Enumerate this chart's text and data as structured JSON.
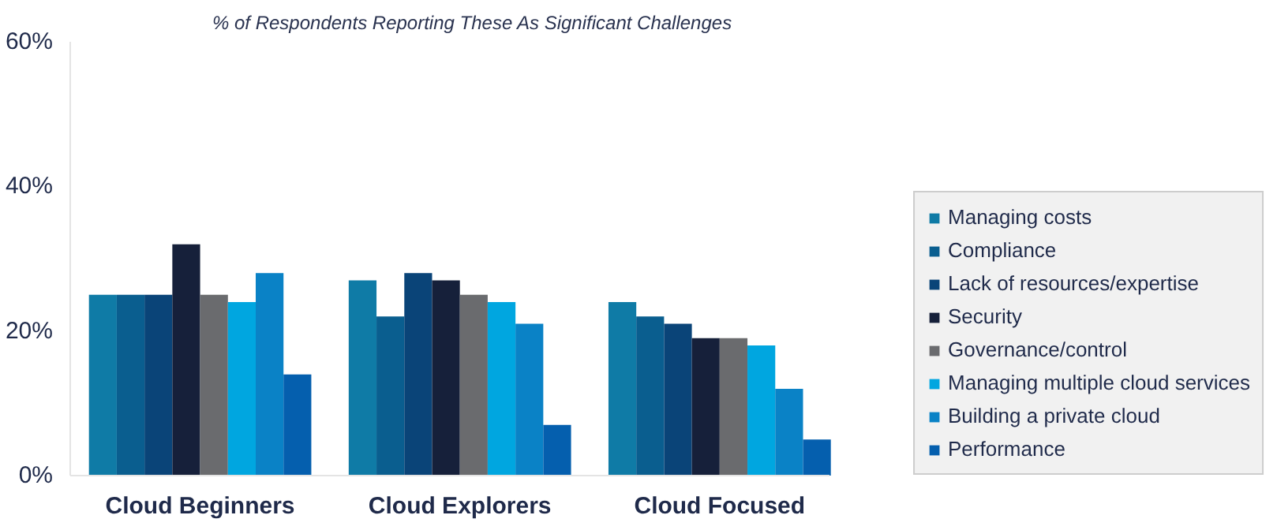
{
  "chart_data": {
    "type": "bar",
    "title": "% of Respondents Reporting These As Significant Challenges",
    "categories": [
      "Cloud Beginners",
      "Cloud Explorers",
      "Cloud Focused"
    ],
    "series": [
      {
        "name": "Managing costs",
        "color": "#0f7ba6",
        "values": [
          25,
          27,
          24
        ]
      },
      {
        "name": "Compliance",
        "color": "#0a5e8f",
        "values": [
          25,
          22,
          22
        ]
      },
      {
        "name": "Lack of resources/expertise",
        "color": "#0a4478",
        "values": [
          25,
          28,
          21
        ]
      },
      {
        "name": "Security",
        "color": "#16203a",
        "values": [
          32,
          27,
          19
        ]
      },
      {
        "name": "Governance/control",
        "color": "#6a6b6e",
        "values": [
          25,
          25,
          19
        ]
      },
      {
        "name": "Managing multiple cloud services",
        "color": "#00a6e0",
        "values": [
          24,
          24,
          18
        ]
      },
      {
        "name": "Building a private cloud",
        "color": "#0a82c6",
        "values": [
          28,
          21,
          12
        ]
      },
      {
        "name": "Performance",
        "color": "#055fae",
        "values": [
          14,
          7,
          5
        ]
      }
    ],
    "ylim": [
      0,
      60
    ],
    "yticks": [
      {
        "value": 0,
        "label": "0%"
      },
      {
        "value": 20,
        "label": "20%"
      },
      {
        "value": 40,
        "label": "40%"
      },
      {
        "value": 60,
        "label": "60%"
      }
    ],
    "grid": false,
    "legend": "right"
  }
}
